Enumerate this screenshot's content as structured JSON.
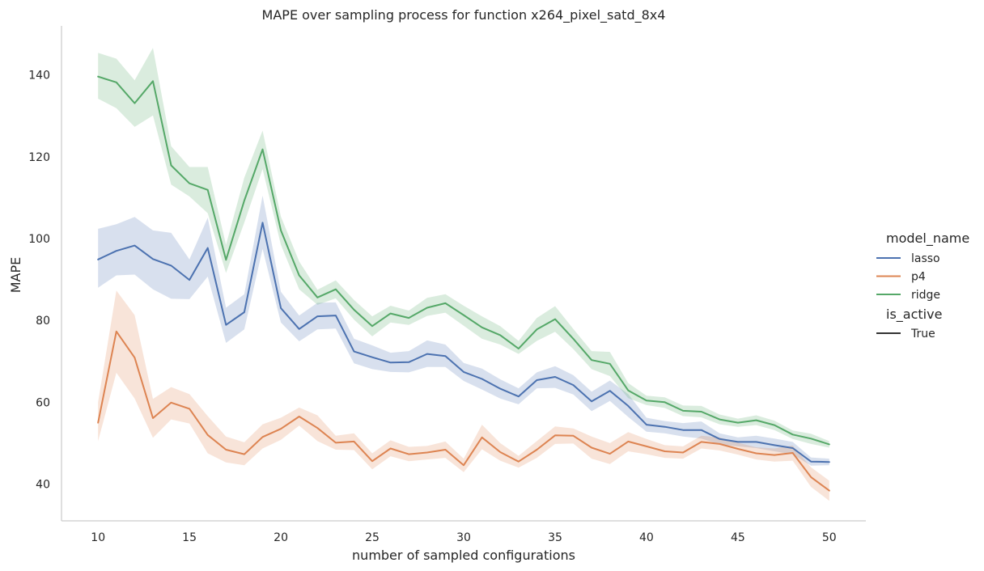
{
  "chart_data": {
    "type": "line",
    "title": "MAPE over sampling process for function x264_pixel_satd_8x4",
    "xlabel": "number of sampled configurations",
    "ylabel": "MAPE",
    "xlim": [
      8,
      52
    ],
    "ylim": [
      31,
      152
    ],
    "xticks": [
      10,
      15,
      20,
      25,
      30,
      35,
      40,
      45,
      50
    ],
    "yticks": [
      40,
      60,
      80,
      100,
      120,
      140
    ],
    "grid": false,
    "legend": {
      "placement": "right",
      "hue_title": "model_name",
      "style_title": "is_active",
      "style_entries": [
        "True"
      ]
    },
    "x": [
      10,
      11,
      12,
      13,
      14,
      15,
      16,
      17,
      18,
      19,
      20,
      21,
      22,
      23,
      24,
      25,
      26,
      27,
      28,
      29,
      30,
      31,
      32,
      33,
      34,
      35,
      36,
      37,
      38,
      39,
      40,
      41,
      42,
      43,
      44,
      45,
      46,
      47,
      48,
      49,
      50
    ],
    "series": [
      {
        "name": "lasso",
        "color": "#4c72b0",
        "values": [
          94.9,
          97.0,
          98.3,
          95.0,
          93.4,
          89.9,
          97.7,
          78.9,
          82.0,
          103.9,
          83.0,
          77.9,
          81.0,
          81.2,
          72.4,
          71.0,
          69.7,
          69.8,
          71.8,
          71.3,
          67.4,
          65.7,
          63.3,
          61.4,
          65.4,
          66.2,
          64.2,
          60.2,
          62.8,
          59.1,
          54.5,
          54.0,
          53.2,
          53.2,
          51.0,
          50.3,
          50.3,
          49.5,
          48.8,
          45.5,
          45.4
        ],
        "lower": [
          88.0,
          91.0,
          91.2,
          87.6,
          85.3,
          85.2,
          90.7,
          74.5,
          77.8,
          97.5,
          79.5,
          74.9,
          77.8,
          78.0,
          69.5,
          68.1,
          67.4,
          67.3,
          68.6,
          68.6,
          65.2,
          63.1,
          60.9,
          59.5,
          63.4,
          63.5,
          61.9,
          57.8,
          60.3,
          56.4,
          52.8,
          52.4,
          51.6,
          51.1,
          49.7,
          49.2,
          48.8,
          48.0,
          47.3,
          44.5,
          44.6
        ],
        "upper": [
          102.4,
          103.5,
          105.3,
          102.0,
          101.4,
          94.9,
          105.1,
          83.1,
          86.4,
          110.5,
          87.0,
          81.2,
          84.3,
          84.4,
          75.5,
          73.9,
          72.1,
          72.5,
          75.1,
          74.1,
          69.6,
          68.2,
          65.6,
          63.4,
          67.3,
          68.8,
          66.6,
          62.6,
          65.3,
          62.0,
          56.2,
          55.4,
          54.9,
          55.3,
          52.4,
          51.4,
          51.8,
          51.1,
          50.3,
          46.5,
          46.2
        ]
      },
      {
        "name": "p4",
        "color": "#dd8452",
        "values": [
          55.0,
          77.3,
          70.9,
          56.1,
          59.9,
          58.4,
          52.0,
          48.4,
          47.3,
          51.5,
          53.5,
          56.5,
          53.7,
          50.1,
          50.4,
          45.6,
          48.7,
          47.3,
          47.7,
          48.4,
          44.6,
          51.4,
          47.8,
          45.5,
          48.4,
          51.9,
          51.8,
          48.9,
          47.4,
          50.4,
          49.2,
          48.0,
          47.7,
          50.3,
          49.8,
          48.6,
          47.5,
          47.1,
          47.6,
          41.7,
          38.4
        ],
        "lower": [
          50.5,
          67.2,
          60.9,
          51.3,
          55.8,
          54.8,
          47.5,
          45.3,
          44.6,
          48.7,
          50.8,
          54.3,
          50.5,
          48.4,
          48.3,
          43.6,
          46.8,
          45.6,
          46.0,
          46.4,
          42.9,
          48.5,
          45.7,
          44.0,
          46.4,
          49.8,
          49.9,
          46.2,
          44.9,
          48.0,
          47.3,
          46.4,
          46.2,
          48.7,
          48.2,
          47.2,
          46.0,
          45.5,
          45.7,
          39.3,
          35.9
        ],
        "upper": [
          60.0,
          87.3,
          81.3,
          60.8,
          63.7,
          62.0,
          56.6,
          51.6,
          50.2,
          54.6,
          56.2,
          58.7,
          56.8,
          51.8,
          52.4,
          47.5,
          50.7,
          49.1,
          49.3,
          50.4,
          46.2,
          54.5,
          50.0,
          46.9,
          50.5,
          54.1,
          53.6,
          51.6,
          50.0,
          52.7,
          51.0,
          49.5,
          49.2,
          51.8,
          51.4,
          50.1,
          49.0,
          48.7,
          49.4,
          44.1,
          40.8
        ]
      },
      {
        "name": "ridge",
        "color": "#55a868",
        "values": [
          139.6,
          138.2,
          133.1,
          138.5,
          117.9,
          113.5,
          111.9,
          94.8,
          109.3,
          121.8,
          102.0,
          91.0,
          85.6,
          87.6,
          82.6,
          78.6,
          81.7,
          80.6,
          83.1,
          84.2,
          81.3,
          78.3,
          76.4,
          73.1,
          77.8,
          80.3,
          75.5,
          70.3,
          69.4,
          62.9,
          60.4,
          60.0,
          57.9,
          57.7,
          55.8,
          55.0,
          55.6,
          54.4,
          52.1,
          51.1,
          49.7
        ],
        "lower": [
          134.2,
          131.9,
          127.3,
          130.1,
          113.2,
          110.3,
          106.2,
          91.6,
          103.9,
          117.0,
          98.5,
          87.6,
          83.8,
          85.4,
          80.2,
          76.1,
          79.5,
          78.9,
          81.1,
          81.9,
          78.7,
          75.5,
          74.1,
          71.8,
          75.0,
          77.2,
          73.0,
          68.1,
          66.4,
          61.0,
          59.3,
          58.6,
          56.6,
          56.3,
          54.6,
          54.0,
          54.4,
          53.2,
          51.0,
          49.8,
          48.9
        ],
        "upper": [
          145.4,
          144.0,
          138.7,
          146.6,
          122.6,
          117.5,
          117.5,
          98.5,
          114.9,
          126.4,
          105.4,
          94.4,
          87.5,
          89.8,
          85.0,
          81.0,
          83.6,
          82.4,
          85.5,
          86.4,
          83.6,
          81.0,
          78.6,
          75.0,
          80.6,
          83.5,
          77.9,
          72.5,
          72.3,
          64.7,
          61.6,
          61.2,
          59.2,
          59.1,
          57.0,
          56.0,
          56.8,
          55.5,
          53.1,
          52.3,
          50.5
        ]
      }
    ]
  }
}
